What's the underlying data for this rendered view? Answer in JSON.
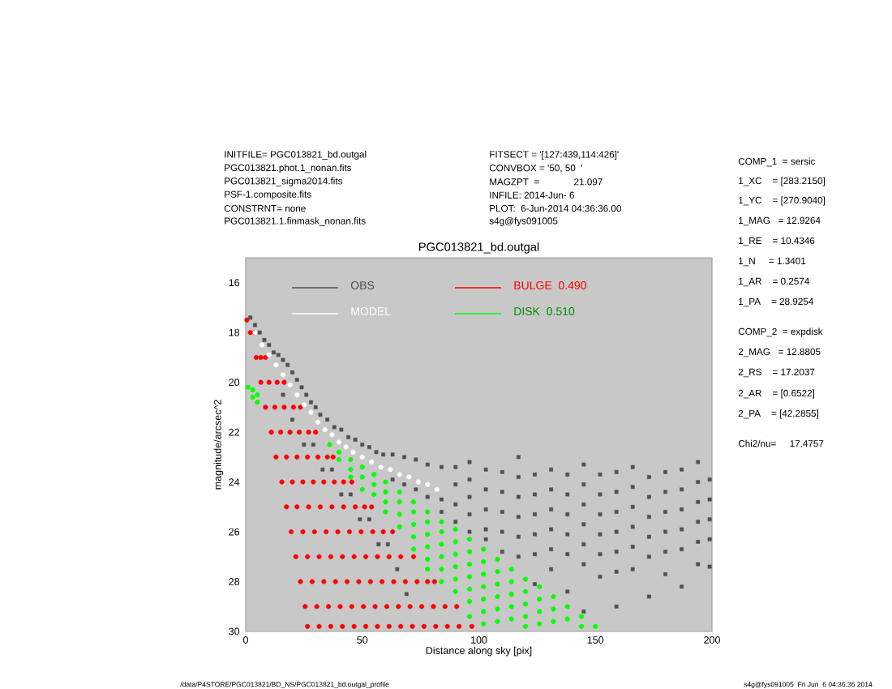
{
  "chart_data": {
    "type": "scatter",
    "title": "PGC013821_bd.outgal",
    "xlabel": "Distance along sky [pix]",
    "ylabel": "magnitude/arcsec^2",
    "annotations": [
      "INITFILE= PGC013821_bd.outgal",
      "PGC013821.phot.1_nonan.fits",
      "PGC013821_sigma2014.fits",
      "PSF-1.composite.fits",
      "CONSTRNT= none",
      "PGC013821.1.finmask_nonan.fits",
      "FITSECT = '[127:439,114:426]'",
      "CONVBOX = '50, 50  '",
      "MAGZPT  =             21.097",
      "INFILE: 2014-Jun- 6",
      "PLOT:  6-Jun-2014 04:36:36.00",
      "s4g@fys091005",
      "COMP_1  = sersic",
      "1_XC    = [283.2150]",
      "1_YC    = [270.9040]",
      "1_MAG   = 12.9264",
      "1_RE    = 10.4346",
      "1_N     = 1.3401",
      "1_AR    = 0.2574",
      "1_PA    = 28.9254",
      "COMP_2  = expdisk",
      "2_MAG   = 12.8805",
      "2_RS    = 17.2037",
      "2_AR    = [0.6522]",
      "2_PA    = [42.2855]",
      "Chi2/nu=     17.4757",
      "/data/P4STORE/PGC013821/BD_NS/PGC013821_bd.outgal_profile",
      "s4g@fys091005  Fri Jun  6 04:36:36 2014"
    ],
    "xlim": [
      0,
      200
    ],
    "xticks": [
      0,
      50,
      100,
      150,
      200
    ],
    "ylim": [
      30,
      15
    ],
    "yticks": [
      16,
      18,
      20,
      22,
      24,
      26,
      28,
      30
    ],
    "legend": "top",
    "marker": "square",
    "series": [
      {
        "name": "OBS",
        "color": "#505050",
        "x": [
          2,
          4,
          6,
          8,
          10,
          12,
          14,
          16,
          18,
          20,
          22,
          24,
          26,
          28,
          30,
          32,
          35,
          38,
          41,
          44,
          47,
          50,
          53,
          56,
          59,
          16,
          20,
          25,
          29,
          33,
          37,
          41,
          45,
          49,
          53,
          57,
          61,
          65,
          69,
          63,
          63,
          68,
          68,
          73,
          73,
          78,
          78,
          84,
          84,
          84,
          90,
          90,
          90,
          90,
          96,
          96,
          96,
          96,
          96,
          103,
          103,
          103,
          103,
          103,
          110,
          110,
          110,
          110,
          110,
          117,
          117,
          117,
          117,
          117,
          117,
          124,
          124,
          124,
          124,
          124,
          124,
          131,
          131,
          131,
          131,
          131,
          131,
          138,
          138,
          138,
          138,
          138,
          138,
          145,
          145,
          145,
          145,
          145,
          145,
          145,
          152,
          152,
          152,
          152,
          152,
          152,
          159,
          159,
          159,
          159,
          159,
          159,
          159,
          166,
          166,
          166,
          166,
          166,
          166,
          173,
          173,
          173,
          173,
          173,
          173,
          180,
          180,
          180,
          180,
          180,
          180,
          187,
          187,
          187,
          187,
          187,
          187,
          194,
          194,
          194,
          194,
          194,
          194,
          199,
          199,
          199,
          199,
          199
        ],
        "values": [
          17.4,
          17.7,
          18.0,
          18.3,
          18.5,
          18.8,
          18.9,
          19.1,
          19.3,
          19.6,
          19.9,
          20.2,
          20.5,
          20.8,
          21.0,
          21.3,
          21.5,
          21.8,
          21.9,
          22.2,
          22.3,
          22.5,
          22.6,
          22.8,
          22.9,
          20.5,
          21.5,
          22.5,
          22.5,
          23.5,
          23.5,
          24.5,
          24.5,
          25.5,
          25.5,
          26.5,
          26.5,
          27.5,
          28.5,
          22.9,
          23.9,
          23.0,
          24.1,
          23.1,
          24.3,
          23.3,
          24.6,
          23.4,
          24.7,
          25.2,
          23.4,
          24.1,
          24.9,
          25.6,
          23.2,
          23.9,
          24.6,
          25.3,
          26.0,
          23.5,
          24.3,
          25.1,
          25.9,
          26.3,
          23.6,
          24.4,
          25.2,
          26.0,
          26.8,
          23.0,
          23.8,
          24.6,
          25.4,
          26.2,
          27.0,
          23.7,
          24.5,
          25.3,
          26.1,
          26.9,
          28.1,
          23.5,
          24.3,
          25.1,
          25.9,
          26.7,
          27.5,
          23.7,
          24.5,
          25.3,
          26.1,
          26.9,
          28.4,
          23.3,
          24.1,
          24.9,
          25.7,
          26.5,
          27.3,
          29.2,
          23.7,
          24.5,
          25.3,
          26.1,
          26.9,
          27.8,
          23.6,
          24.4,
          25.2,
          26.0,
          26.8,
          27.6,
          29.0,
          23.4,
          24.2,
          25.0,
          25.8,
          26.6,
          27.5,
          23.8,
          24.6,
          25.4,
          26.2,
          27.0,
          28.6,
          23.6,
          24.4,
          25.2,
          26.0,
          26.8,
          27.7,
          23.5,
          24.3,
          25.1,
          25.9,
          26.7,
          28.2,
          23.2,
          24.0,
          24.8,
          25.6,
          26.4,
          27.3,
          23.9,
          24.7,
          25.5,
          26.3,
          27.4
        ]
      },
      {
        "name": "MODEL",
        "color": "#ffffff",
        "marker": "circle",
        "x": [
          4,
          7,
          10,
          13,
          16,
          19,
          22,
          25,
          28,
          31,
          34,
          37,
          40,
          43,
          46,
          50,
          54,
          58,
          62,
          66,
          70,
          74,
          78,
          82
        ],
        "values": [
          18.0,
          18.5,
          18.9,
          19.3,
          19.7,
          20.1,
          20.5,
          20.9,
          21.2,
          21.6,
          21.9,
          22.1,
          22.4,
          22.6,
          22.8,
          23.0,
          23.2,
          23.4,
          23.5,
          23.7,
          23.8,
          24.0,
          24.1,
          24.3
        ]
      },
      {
        "name": "BULGE  0.490",
        "color": "#ff0000",
        "marker": "circle",
        "x": [
          0.5,
          2.0,
          3.8,
          4.5,
          6.5,
          8.5,
          6.5,
          10.0,
          13.5,
          16.5,
          8.5,
          12.5,
          16.5,
          20.5,
          23.5,
          11,
          15,
          19,
          23,
          27,
          30,
          13,
          17.5,
          22,
          26.5,
          31,
          35,
          37.5,
          15.5,
          20,
          24.5,
          29,
          33.5,
          38,
          42,
          45.5,
          17.5,
          22,
          27,
          32,
          37,
          42,
          47,
          51,
          54,
          19.5,
          24.5,
          29.5,
          34.5,
          39.5,
          44.5,
          49.5,
          54.5,
          59,
          63,
          21.5,
          26.5,
          31.5,
          36.5,
          41.5,
          46.5,
          51.5,
          56.5,
          61.5,
          66.5,
          72,
          23.5,
          28.5,
          33.5,
          38.5,
          43.5,
          48.5,
          53.5,
          58.5,
          63.5,
          68.5,
          73.5,
          78,
          81,
          25.5,
          30.5,
          35.5,
          40.5,
          45.5,
          50.5,
          55.5,
          60.5,
          65.5,
          70.5,
          75.5,
          80.5,
          85.5,
          90.5,
          26.5,
          31.5,
          36.5,
          41.5,
          46.5,
          51.5,
          56.5,
          61.5,
          66.5,
          71.5,
          76.5,
          81.5,
          86.5,
          91.5,
          97
        ],
        "values": [
          17.5,
          18,
          18,
          19,
          19,
          19,
          20,
          20,
          20,
          20,
          21,
          21,
          21,
          21,
          21,
          22,
          22,
          22,
          22,
          22,
          22,
          23,
          23,
          23,
          23,
          23,
          23,
          23,
          24,
          24,
          24,
          24,
          24,
          24,
          24,
          24,
          25,
          25,
          25,
          25,
          25,
          25,
          25,
          25,
          25,
          26,
          26,
          26,
          26,
          26,
          26,
          26,
          26,
          26,
          26,
          27,
          27,
          27,
          27,
          27,
          27,
          27,
          27,
          27,
          27,
          27,
          28,
          28,
          28,
          28,
          28,
          28,
          28,
          28,
          28,
          28,
          28,
          28,
          28,
          29,
          29,
          29,
          29,
          29,
          29,
          29,
          29,
          29,
          29,
          29,
          29,
          29,
          29,
          29.8,
          29.8,
          29.8,
          29.8,
          29.8,
          29.8,
          29.8,
          29.8,
          29.8,
          29.8,
          29.8,
          29.8,
          29.8,
          29.8,
          29.8
        ]
      },
      {
        "name": "DISK  0.510",
        "color": "#00ff00",
        "marker": "circle",
        "x": [
          1,
          3,
          3,
          5,
          5,
          36,
          40,
          40,
          45,
          45,
          45,
          50,
          50,
          50,
          55,
          55,
          55,
          60,
          60,
          60,
          60,
          66,
          66,
          66,
          66,
          72,
          72,
          72,
          72,
          72,
          78,
          78,
          78,
          78,
          78,
          78,
          84,
          84,
          84,
          84,
          84,
          84,
          90,
          90,
          90,
          90,
          90,
          90,
          96,
          96,
          96,
          96,
          96,
          96,
          96,
          102,
          102,
          102,
          102,
          102,
          102,
          102,
          108,
          108,
          108,
          108,
          108,
          108,
          114,
          114,
          114,
          114,
          114,
          120,
          120,
          120,
          120,
          120,
          126,
          126,
          126,
          126,
          132,
          132,
          132,
          138,
          138,
          144,
          144,
          150
        ],
        "values": [
          20.2,
          20.3,
          20.6,
          20.5,
          20.8,
          22.5,
          22.8,
          23.1,
          23.1,
          23.5,
          23.8,
          23.4,
          23.8,
          24.3,
          23.7,
          24.1,
          24.5,
          24.0,
          24.4,
          24.8,
          25.2,
          24.4,
          24.8,
          25.3,
          25.8,
          24.8,
          25.2,
          25.7,
          26.2,
          26.7,
          25.2,
          25.6,
          26.1,
          26.6,
          27.1,
          27.5,
          25.6,
          26.0,
          26.5,
          27.0,
          27.5,
          28.0,
          25.9,
          26.4,
          26.9,
          27.4,
          27.9,
          28.4,
          26.3,
          26.8,
          27.3,
          27.8,
          28.3,
          28.8,
          29.4,
          26.7,
          27.2,
          27.7,
          28.2,
          28.7,
          29.2,
          29.7,
          27.1,
          27.6,
          28.1,
          28.6,
          29.1,
          29.6,
          27.5,
          28.0,
          28.5,
          29.0,
          29.5,
          27.9,
          28.4,
          28.9,
          29.4,
          29.8,
          28.2,
          28.7,
          29.2,
          29.7,
          28.6,
          29.1,
          29.6,
          29.0,
          29.5,
          29.4,
          29.8,
          29.8
        ]
      }
    ]
  }
}
